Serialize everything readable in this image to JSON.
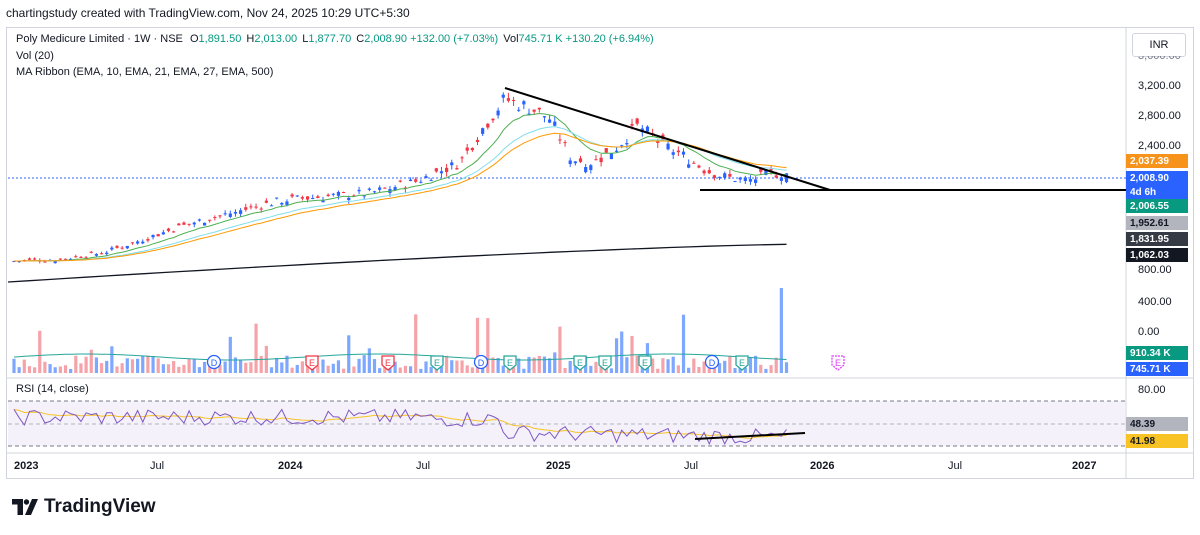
{
  "credit": "chartingstudy created with TradingView.com, Nov 24, 2025 10:29 UTC+5:30",
  "legend": {
    "symbol": "Poly Medicure Limited · 1W · NSE",
    "o_label": "O",
    "o_value": "1,891.50",
    "h_label": "H",
    "h_value": "2,013.00",
    "l_label": "L",
    "l_value": "1,877.70",
    "c_label": "C",
    "c_value": "2,008.90",
    "change": "+132.00 (+7.03%)",
    "vol_label": "Vol",
    "vol_value": "745.71 K",
    "vol_change": "+130.20 (+6.94%)",
    "vol_indicator": "Vol (20)",
    "ma_ribbon": "MA Ribbon (EMA, 10, EMA, 21, EMA, 27, EMA, 500)",
    "rsi": "RSI (14, close)"
  },
  "currency_button": "INR",
  "price_axis": {
    "ticks": [
      "3,200.00",
      "2,800.00",
      "2,400.00",
      "800.00",
      "400.00",
      "0.00"
    ],
    "top_partial": "3,600.00"
  },
  "price_tags": [
    {
      "text": "2,037.39",
      "color": "#f7931a",
      "text_color": "#ffffff"
    },
    {
      "text": "2,008.90",
      "color": "#2962ff",
      "text_color": "#ffffff"
    },
    {
      "text": "4d 6h",
      "color": "#2962ff",
      "text_color": "#ffffff"
    },
    {
      "text": "2,006.55",
      "color": "#089981",
      "text_color": "#ffffff"
    },
    {
      "text": "1,952.61",
      "color": "#b2b5be",
      "text_color": "#131722"
    },
    {
      "text": "1,831.95",
      "color": "#363a45",
      "text_color": "#ffffff"
    },
    {
      "text": "1,062.03",
      "color": "#131722",
      "text_color": "#ffffff"
    }
  ],
  "volume_tags": [
    {
      "text": "910.34 K",
      "color": "#089981"
    },
    {
      "text": "745.71 K",
      "color": "#2962ff"
    }
  ],
  "rsi_axis": {
    "top": "80.00"
  },
  "rsi_tags": [
    {
      "text": "48.39",
      "color": "#b2b5be",
      "text_color": "#131722"
    },
    {
      "text": "41.98",
      "color": "#f7c325",
      "text_color": "#131722"
    }
  ],
  "time_axis": [
    "2023",
    "Jul",
    "2024",
    "Jul",
    "2025",
    "Jul",
    "2026",
    "Jul",
    "2027"
  ],
  "event_markers": [
    "D",
    "E",
    "E",
    "E",
    "D",
    "E",
    "E",
    "E",
    "E",
    "D",
    "E"
  ],
  "future_marker": "E",
  "brand": "TradingView",
  "colors": {
    "up": "#2962ff",
    "down": "#f23645",
    "ema10": "#4caf50",
    "ema21": "#80deea",
    "ema27": "#ff9800",
    "ema500": "#131722",
    "rsi": "#7e57c2",
    "rsi_ma": "#f7c325",
    "vol_up": "#7ea7ff",
    "vol_down": "#f5a3a8",
    "vol_ma": "#26a69a"
  },
  "chart_data": {
    "type": "candlestick",
    "title": "Poly Medicure Limited · 1W · NSE",
    "timeframe": "1W",
    "ohlc_last": {
      "open": 1891.5,
      "high": 2013.0,
      "low": 1877.7,
      "close": 2008.9
    },
    "close_series": {
      "x": [
        "2023-01",
        "2023-03",
        "2023-05",
        "2023-07",
        "2023-09",
        "2023-11",
        "2024-01",
        "2024-03",
        "2024-05",
        "2024-07",
        "2024-09",
        "2024-10",
        "2024-11",
        "2024-12",
        "2025-01",
        "2025-02",
        "2025-03",
        "2025-04",
        "2025-05",
        "2025-06",
        "2025-07",
        "2025-08",
        "2025-09",
        "2025-10",
        "2025-11"
      ],
      "values": [
        840,
        860,
        950,
        1150,
        1350,
        1500,
        1650,
        1700,
        1750,
        1900,
        2150,
        2600,
        3000,
        2900,
        2750,
        2200,
        2150,
        2350,
        2650,
        2400,
        2250,
        2050,
        1950,
        1920,
        2008.9
      ]
    },
    "volume_ma": 910.34,
    "volume_last": 745.71,
    "rsi_last": 48.39,
    "rsi_ma_last": 41.98,
    "rsi_range": [
      0,
      100
    ],
    "annotations": [
      "descending trendline from Oct 2024 high",
      "horizontal support near 1,900",
      "rising RSI support line"
    ],
    "x_range": [
      "2023",
      "2027"
    ]
  }
}
